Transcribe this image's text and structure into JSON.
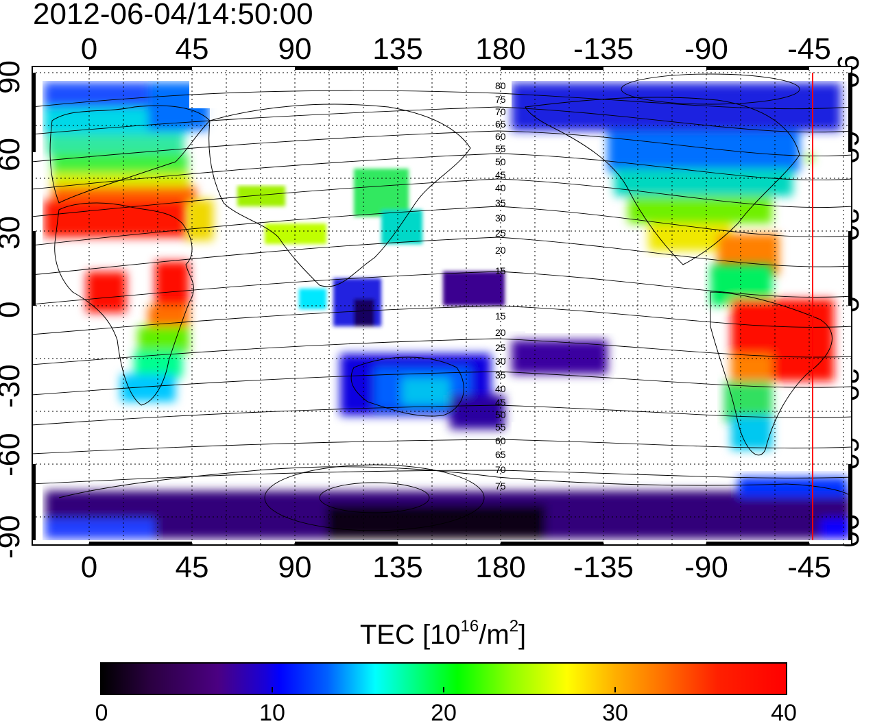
{
  "timestamp": "2012-06-04/14:50:00",
  "axes": {
    "longitude_ticks": [
      "0",
      "45",
      "90",
      "135",
      "180",
      "-135",
      "-90",
      "-45"
    ],
    "latitude_ticks": [
      "90",
      "60",
      "30",
      "0",
      "-30",
      "-60",
      "-90"
    ]
  },
  "contours": {
    "labels": [
      "80",
      "75",
      "70",
      "65",
      "60",
      "55",
      "50",
      "45",
      "40",
      "35",
      "30",
      "25",
      "20",
      "15",
      "15",
      "20",
      "25",
      "30",
      "35",
      "40",
      "45",
      "50",
      "55",
      "60",
      "65",
      "70",
      "75"
    ]
  },
  "colorbar": {
    "title_prefix": "TEC  [10",
    "title_exp1": "16",
    "title_mid": "/m",
    "title_exp2": "2",
    "title_suffix": "]",
    "ticks": [
      "0",
      "10",
      "20",
      "30",
      "40"
    ],
    "colors": [
      "#000000",
      "#4b0082",
      "#0000ff",
      "#00ffff",
      "#00ff00",
      "#ffff00",
      "#ff8000",
      "#ff0000"
    ]
  },
  "map_elements": {
    "terminator_color": "#ff0000"
  }
}
